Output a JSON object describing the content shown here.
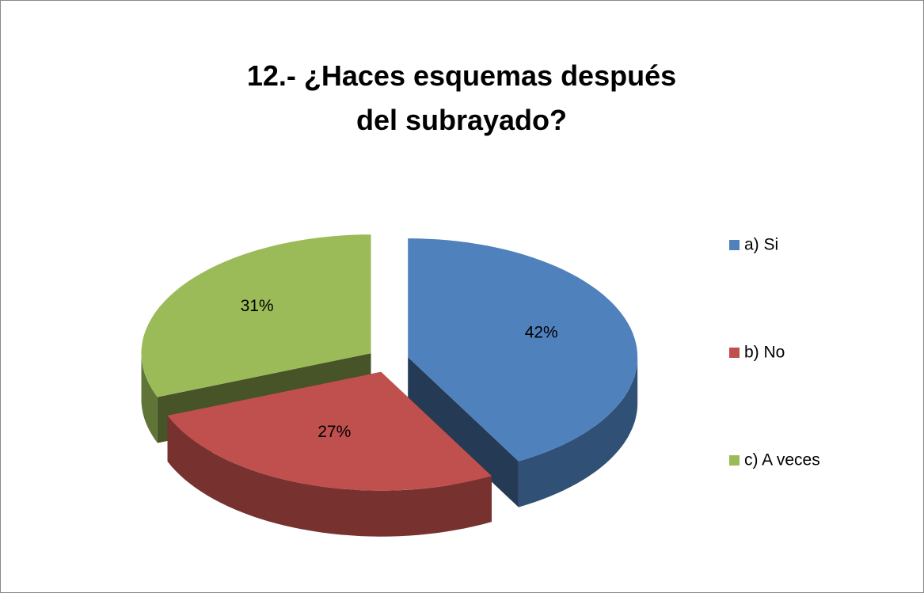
{
  "chart_data": {
    "type": "pie",
    "title": "12.- ¿Haces esquemas después del subrayado?",
    "categories": [
      "a) Si",
      "b) No",
      "c) A veces"
    ],
    "values": [
      42,
      27,
      31
    ],
    "value_labels": [
      "42%",
      "27%",
      "31%"
    ],
    "colors": [
      "#4f81bd",
      "#c0504d",
      "#9bbb59"
    ],
    "legend": "right"
  }
}
